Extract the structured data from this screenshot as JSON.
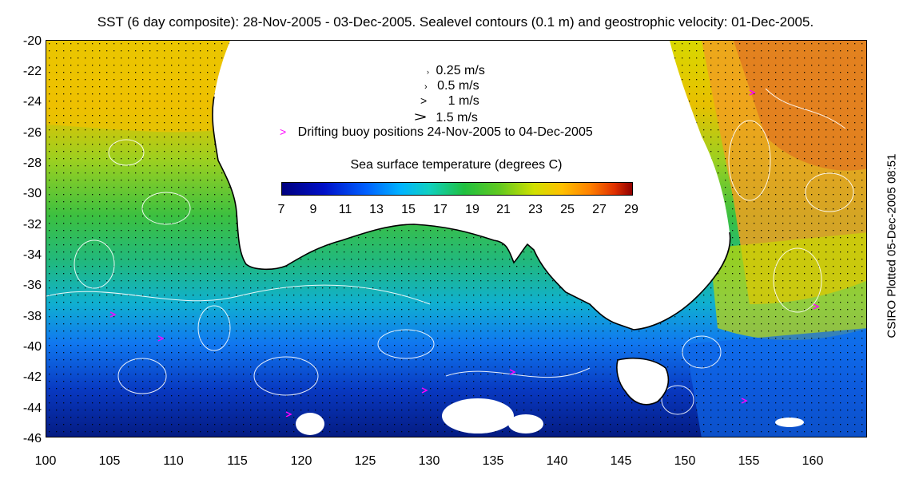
{
  "title": "SST (6 day composite): 28-Nov-2005 - 03-Dec-2005. Sealevel contours (0.1 m) and geostrophic velocity: 01-Dec-2005.",
  "credit": "CSIRO Plotted 05-Dec-2005 08:51",
  "y_axis_ticks": [
    "-20",
    "-22",
    "-24",
    "-26",
    "-28",
    "-30",
    "-32",
    "-34",
    "-36",
    "-38",
    "-40",
    "-42",
    "-44",
    "-46"
  ],
  "x_axis_ticks": [
    "100",
    "105",
    "110",
    "115",
    "120",
    "125",
    "130",
    "135",
    "140",
    "145",
    "150",
    "155",
    "160"
  ],
  "velocity_legend": [
    {
      "symbol": "›",
      "label": "0.25 m/s"
    },
    {
      "symbol": "›",
      "label": "0.5 m/s"
    },
    {
      "symbol": ">",
      "label": "1 m/s"
    },
    {
      "symbol": ">",
      "label": "1.5 m/s"
    }
  ],
  "buoy_legend": {
    "symbol": ">",
    "label": "Drifting buoy positions 24-Nov-2005 to 04-Dec-2005",
    "color": "#ff00ff"
  },
  "colorbar": {
    "title": "Sea surface temperature (degrees C)",
    "ticks": [
      "7",
      "9",
      "11",
      "13",
      "15",
      "17",
      "19",
      "21",
      "23",
      "25",
      "27",
      "29"
    ]
  },
  "colors": {
    "land": "#ffffff",
    "contour": "#ffffff",
    "coast": "#000000",
    "buoy": "#ff00ff"
  }
}
